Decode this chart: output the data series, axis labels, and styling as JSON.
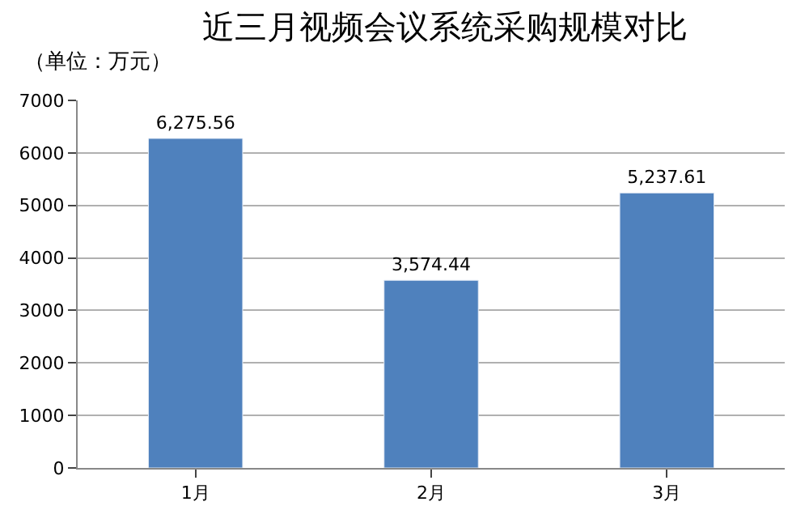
{
  "chart_data": {
    "type": "bar",
    "title": "近三月视频会议系统采购规模对比",
    "subtitle": "（单位：万元）",
    "categories": [
      "1月",
      "2月",
      "3月"
    ],
    "values": [
      6275.56,
      3574.44,
      5237.61
    ],
    "value_labels": [
      "6,275.56",
      "3,574.44",
      "5,237.61"
    ],
    "color": "#4f81bd",
    "ylim": [
      0,
      7000
    ],
    "yticks": [
      0,
      1000,
      2000,
      3000,
      4000,
      5000,
      6000,
      7000
    ],
    "grid": "y",
    "legend": false
  }
}
